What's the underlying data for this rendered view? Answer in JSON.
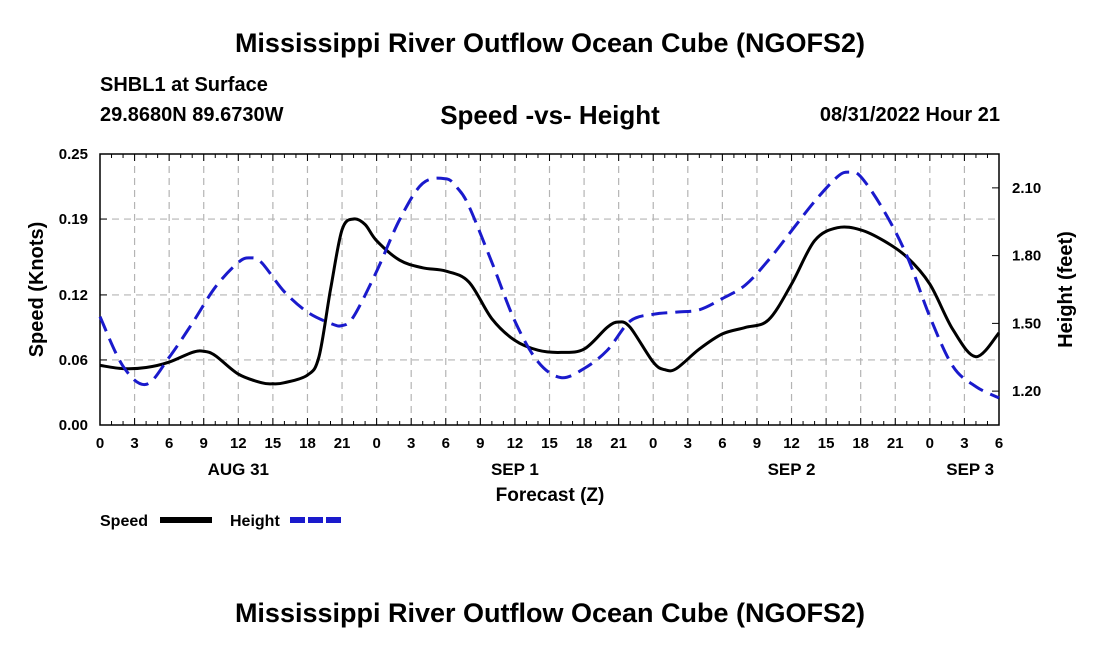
{
  "header": {
    "title": "Mississippi River Outflow Ocean Cube (NGOFS2)",
    "station": "SHBL1 at Surface",
    "coords": "29.8680N  89.6730W",
    "subtitle": "Speed -vs- Height",
    "datetime": "08/31/2022 Hour 21"
  },
  "footer": {
    "title": "Mississippi River Outflow Ocean Cube (NGOFS2)"
  },
  "colors": {
    "speed": "#000000",
    "height": "#1a1acc",
    "grid": "#b4b4b4"
  },
  "chart_data": {
    "type": "line",
    "title": "Speed -vs- Height",
    "xlabel": "Forecast (Z)",
    "ylabel": "Speed (Knots)",
    "y2label": "Height (feet)",
    "x_unit": "hours",
    "xlim": [
      0,
      78
    ],
    "ylim": [
      0,
      0.25
    ],
    "y2lim": [
      1.05,
      2.25
    ],
    "x_ticks": [
      0,
      3,
      6,
      9,
      12,
      15,
      18,
      21,
      24,
      27,
      30,
      33,
      36,
      39,
      42,
      45,
      48,
      51,
      54,
      57,
      60,
      63,
      66,
      69,
      72,
      75,
      78
    ],
    "x_tick_labels": [
      "0",
      "3",
      "6",
      "9",
      "12",
      "15",
      "18",
      "21",
      "0",
      "3",
      "6",
      "9",
      "12",
      "15",
      "18",
      "21",
      "0",
      "3",
      "6",
      "9",
      "12",
      "15",
      "18",
      "21",
      "0",
      "3",
      "6"
    ],
    "y_ticks": [
      0,
      0.06,
      0.12,
      0.19,
      0.25
    ],
    "y_tick_labels": [
      "0.00",
      "0.06",
      "0.12",
      "0.19",
      "0.25"
    ],
    "y2_ticks": [
      1.2,
      1.5,
      1.8,
      2.1
    ],
    "y2_tick_labels": [
      "1.20",
      "1.50",
      "1.80",
      "2.10"
    ],
    "date_labels": [
      {
        "x": 12,
        "label": "AUG 31"
      },
      {
        "x": 36,
        "label": "SEP 1"
      },
      {
        "x": 60,
        "label": "SEP 2"
      },
      {
        "x": 75.5,
        "label": "SEP 3"
      }
    ],
    "legend": [
      {
        "name": "Speed",
        "style": "solid"
      },
      {
        "name": "Height",
        "style": "dashed"
      }
    ],
    "series": [
      {
        "name": "Speed",
        "axis": "left",
        "style": "solid",
        "x": [
          0,
          2,
          4,
          6,
          8,
          9,
          10,
          12,
          14,
          15,
          16,
          18,
          19,
          20,
          21,
          22,
          23,
          24,
          26,
          28,
          30,
          32,
          34,
          36,
          38,
          40,
          42,
          44,
          45,
          46,
          48,
          49,
          50,
          52,
          54,
          56,
          58,
          60,
          62,
          64,
          66,
          68,
          70,
          72,
          74,
          76,
          78
        ],
        "values": [
          0.055,
          0.052,
          0.053,
          0.058,
          0.067,
          0.068,
          0.064,
          0.047,
          0.039,
          0.038,
          0.039,
          0.046,
          0.063,
          0.125,
          0.18,
          0.19,
          0.185,
          0.17,
          0.152,
          0.145,
          0.142,
          0.132,
          0.098,
          0.078,
          0.069,
          0.067,
          0.07,
          0.09,
          0.095,
          0.09,
          0.058,
          0.051,
          0.052,
          0.07,
          0.084,
          0.09,
          0.097,
          0.13,
          0.17,
          0.182,
          0.18,
          0.17,
          0.155,
          0.13,
          0.088,
          0.063,
          0.085
        ]
      },
      {
        "name": "Height",
        "axis": "right",
        "style": "dashed",
        "x": [
          0,
          2,
          4,
          6,
          8,
          10,
          12,
          13,
          14,
          16,
          18,
          20,
          21,
          22,
          24,
          26,
          28,
          30,
          31,
          32,
          34,
          36,
          38,
          40,
          42,
          44,
          46,
          48,
          50,
          52,
          54,
          56,
          58,
          60,
          62,
          64,
          65,
          66,
          68,
          70,
          72,
          74,
          76,
          78
        ],
        "values": [
          1.53,
          1.31,
          1.23,
          1.35,
          1.5,
          1.66,
          1.77,
          1.79,
          1.77,
          1.64,
          1.55,
          1.5,
          1.49,
          1.53,
          1.73,
          1.96,
          2.12,
          2.14,
          2.1,
          2.02,
          1.77,
          1.51,
          1.33,
          1.26,
          1.3,
          1.38,
          1.51,
          1.54,
          1.55,
          1.56,
          1.61,
          1.67,
          1.78,
          1.91,
          2.04,
          2.15,
          2.17,
          2.15,
          2.0,
          1.8,
          1.53,
          1.31,
          1.22,
          1.17
        ]
      }
    ]
  }
}
